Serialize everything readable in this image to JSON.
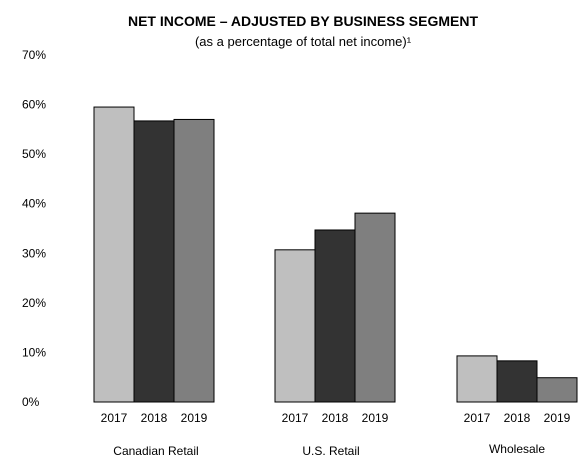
{
  "chart_data": {
    "type": "bar",
    "title": "NET INCOME – ADJUSTED BY BUSINESS SEGMENT",
    "subtitle": "(as a percentage of total net income)¹",
    "ylim": [
      0,
      70
    ],
    "yticks": [
      0,
      10,
      20,
      30,
      40,
      50,
      60,
      70
    ],
    "ytick_labels": [
      "0%",
      "10%",
      "20%",
      "30%",
      "40%",
      "50%",
      "60%",
      "70%"
    ],
    "grid": false,
    "legend": "none",
    "categories": [
      "Canadian Retail",
      "U.S. Retail",
      "Wholesale"
    ],
    "series": [
      {
        "label": "2017",
        "color": "#bfbfbf",
        "values": [
          59.5,
          30.7,
          9.3
        ]
      },
      {
        "label": "2018",
        "color": "#333333",
        "values": [
          56.7,
          34.7,
          8.3
        ]
      },
      {
        "label": "2019",
        "color": "#7f7f7f",
        "values": [
          57.0,
          38.1,
          4.9
        ]
      }
    ]
  }
}
